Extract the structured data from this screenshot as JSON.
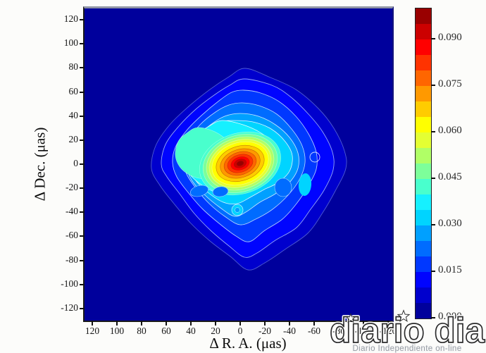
{
  "figure": {
    "background_color": "#fcfcfa",
    "plot_background_color": "#00009c",
    "x_axis": {
      "title": "Δ R. A.  (μas)",
      "ticks": [
        120,
        100,
        80,
        60,
        40,
        20,
        0,
        -20,
        -40,
        -60,
        -80,
        -100,
        -120
      ]
    },
    "y_axis": {
      "title": "Δ Dec.  (μas)",
      "ticks": [
        120,
        100,
        80,
        60,
        40,
        20,
        0,
        -20,
        -40,
        -60,
        -80,
        -100,
        -120
      ]
    }
  },
  "colorbar": {
    "min": 0.0,
    "max": 0.1,
    "band_step": 0.005,
    "tick_labels": [
      {
        "value": 0.09,
        "label": "0.090"
      },
      {
        "value": 0.075,
        "label": "0.075"
      },
      {
        "value": 0.06,
        "label": "0.060"
      },
      {
        "value": 0.045,
        "label": "0.045"
      },
      {
        "value": 0.03,
        "label": "0.030"
      },
      {
        "value": 0.015,
        "label": "0.015"
      },
      {
        "value": 0.0,
        "label": "0.000"
      }
    ],
    "band_colors": [
      "#00009c",
      "#0000cd",
      "#0004ff",
      "#0038ff",
      "#006cff",
      "#00a0ff",
      "#00d4ff",
      "#16f0ff",
      "#49ffcd",
      "#7dff9a",
      "#b0ff66",
      "#e4ff33",
      "#ffff00",
      "#ffcc00",
      "#ff9900",
      "#ff6600",
      "#ff3300",
      "#ff0000",
      "#cc0000",
      "#990000"
    ]
  },
  "chart_data": {
    "type": "heatmap",
    "subtype": "filled-contour-map",
    "title": "",
    "xlabel": "Δ R. A.  (μas)",
    "ylabel": "Δ Dec.  (μas)",
    "xlim": [
      130,
      -130
    ],
    "x_axis_reversed": true,
    "ylim": [
      -130,
      130
    ],
    "x_ticks": [
      120,
      100,
      80,
      60,
      40,
      20,
      0,
      -20,
      -40,
      -60,
      -80,
      -100,
      -120
    ],
    "y_ticks": [
      120,
      100,
      80,
      60,
      40,
      20,
      0,
      -20,
      -40,
      -60,
      -80,
      -100,
      -120
    ],
    "colormap": "jet",
    "contour_levels_range": [
      0.0,
      0.1
    ],
    "contour_level_step": 0.005,
    "colorbar_tick_values": [
      0.09,
      0.075,
      0.06,
      0.045,
      0.03,
      0.015,
      0.0
    ],
    "grid": false,
    "legend": "colorbar-right",
    "features": [
      {
        "label": "peak-core",
        "ra_uas": 0,
        "dec_uas": 0,
        "value": 0.1
      },
      {
        "label": "red-inner-core",
        "ra_uas": 0,
        "dec_uas": 0,
        "extent_uas": "≈20×14, PA tilted ~ -18°",
        "value": 0.085
      },
      {
        "label": "yellow-core-envelope",
        "ra_uas": 0,
        "dec_uas": 0,
        "extent_uas": "≈48×34",
        "value": 0.063
      },
      {
        "label": "extended-green-plateau",
        "ra_uas": 33,
        "dec_uas": 12,
        "value": 0.05
      },
      {
        "label": "south-knot-ringlet",
        "ra_uas": 2,
        "dec_uas": -40,
        "value": 0.033
      },
      {
        "label": "low-brightness-holes",
        "ra_uas": -12,
        "dec_uas": -22,
        "value": 0.022
      },
      {
        "label": "eastern-ringlet",
        "ra_uas": -61,
        "dec_uas": 5,
        "value": 0.013
      },
      {
        "label": "outer-envelope",
        "ra_uas": 3,
        "dec_uas": -3,
        "extent_uas": "rounded diamond ≈ ±80, elongated NW–SE",
        "value": 0.005
      }
    ]
  },
  "watermark": {
    "logo": "diario dia",
    "subtitle": "Diario Independiente on-line",
    "logo_style": "hollow outlined lowercase letters with two star accents",
    "subtitle_color": "#969ca4"
  }
}
